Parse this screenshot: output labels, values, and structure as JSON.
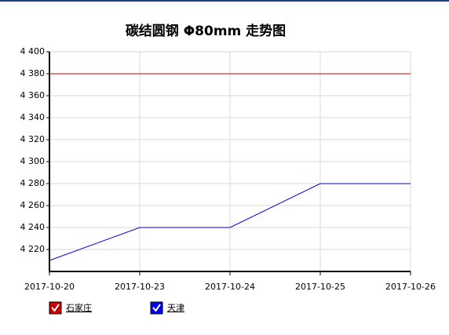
{
  "chart_data": {
    "type": "line",
    "title": "碳结圆钢 Φ80mm 走势图",
    "categories": [
      "2017-10-20",
      "2017-10-23",
      "2017-10-24",
      "2017-10-25",
      "2017-10-26"
    ],
    "series": [
      {
        "name": "石家庄",
        "color": "#cc0000",
        "values": [
          4380,
          4380,
          4380,
          4380,
          4380
        ]
      },
      {
        "name": "天津",
        "color": "#0000ee",
        "values": [
          4210,
          4240,
          4240,
          4280,
          4280
        ]
      }
    ],
    "ylim": [
      4200,
      4400
    ],
    "yticks": [
      {
        "value": 4220,
        "label": "4 220"
      },
      {
        "value": 4240,
        "label": "4 240"
      },
      {
        "value": 4260,
        "label": "4 260"
      },
      {
        "value": 4280,
        "label": "4 280"
      },
      {
        "value": 4300,
        "label": "4 300"
      },
      {
        "value": 4320,
        "label": "4 320"
      },
      {
        "value": 4340,
        "label": "4 340"
      },
      {
        "value": 4360,
        "label": "4 360"
      },
      {
        "value": 4380,
        "label": "4 380"
      },
      {
        "value": 4400,
        "label": "4 400"
      }
    ],
    "grid": true
  }
}
